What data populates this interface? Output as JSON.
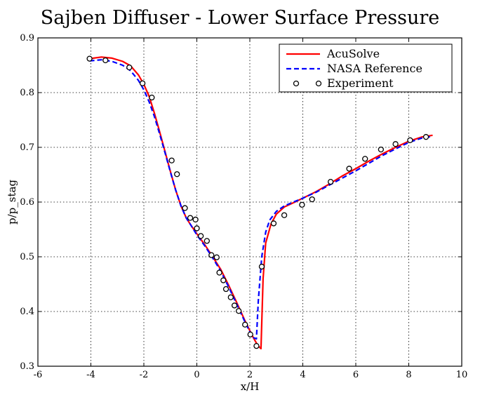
{
  "chart_data": {
    "type": "line",
    "title": "Sajben Diffuser - Lower Surface Pressure",
    "xlabel": "x/H",
    "ylabel": "p/p_stag",
    "xlim": [
      -6,
      10
    ],
    "ylim": [
      0.3,
      0.9
    ],
    "xticks": [
      "-6",
      "-4",
      "-2",
      "0",
      "2",
      "4",
      "6",
      "8",
      "10"
    ],
    "yticks": [
      "0.3",
      "0.4",
      "0.5",
      "0.6",
      "0.7",
      "0.8",
      "0.9"
    ],
    "grid": true,
    "legend_position": "top-right",
    "series": [
      {
        "name": "AcuSolve",
        "style": "solid",
        "color": "#ff0000",
        "points": [
          [
            -4.05,
            0.862
          ],
          [
            -3.6,
            0.865
          ],
          [
            -3.2,
            0.863
          ],
          [
            -2.8,
            0.857
          ],
          [
            -2.5,
            0.849
          ],
          [
            -2.2,
            0.832
          ],
          [
            -2.0,
            0.815
          ],
          [
            -1.8,
            0.793
          ],
          [
            -1.6,
            0.762
          ],
          [
            -1.4,
            0.728
          ],
          [
            -1.2,
            0.692
          ],
          [
            -1.0,
            0.656
          ],
          [
            -0.8,
            0.622
          ],
          [
            -0.6,
            0.593
          ],
          [
            -0.4,
            0.571
          ],
          [
            -0.2,
            0.556
          ],
          [
            0.0,
            0.542
          ],
          [
            0.3,
            0.522
          ],
          [
            0.6,
            0.5
          ],
          [
            0.9,
            0.477
          ],
          [
            1.2,
            0.448
          ],
          [
            1.5,
            0.417
          ],
          [
            1.8,
            0.385
          ],
          [
            2.1,
            0.355
          ],
          [
            2.3,
            0.338
          ],
          [
            2.42,
            0.332
          ],
          [
            2.5,
            0.46
          ],
          [
            2.6,
            0.525
          ],
          [
            2.8,
            0.56
          ],
          [
            3.0,
            0.578
          ],
          [
            3.3,
            0.591
          ],
          [
            3.7,
            0.6
          ],
          [
            4.0,
            0.607
          ],
          [
            4.5,
            0.619
          ],
          [
            5.0,
            0.633
          ],
          [
            5.5,
            0.648
          ],
          [
            6.0,
            0.661
          ],
          [
            6.5,
            0.675
          ],
          [
            7.0,
            0.688
          ],
          [
            7.5,
            0.7
          ],
          [
            8.0,
            0.711
          ],
          [
            8.5,
            0.719
          ],
          [
            8.9,
            0.722
          ]
        ]
      },
      {
        "name": "NASA Reference",
        "style": "dashed",
        "color": "#0000ff",
        "points": [
          [
            -4.05,
            0.858
          ],
          [
            -3.6,
            0.86
          ],
          [
            -3.2,
            0.857
          ],
          [
            -2.8,
            0.85
          ],
          [
            -2.5,
            0.84
          ],
          [
            -2.2,
            0.822
          ],
          [
            -2.0,
            0.805
          ],
          [
            -1.8,
            0.783
          ],
          [
            -1.6,
            0.756
          ],
          [
            -1.4,
            0.724
          ],
          [
            -1.2,
            0.69
          ],
          [
            -1.0,
            0.655
          ],
          [
            -0.8,
            0.622
          ],
          [
            -0.6,
            0.593
          ],
          [
            -0.4,
            0.571
          ],
          [
            -0.2,
            0.556
          ],
          [
            0.0,
            0.54
          ],
          [
            0.3,
            0.52
          ],
          [
            0.6,
            0.498
          ],
          [
            0.9,
            0.474
          ],
          [
            1.2,
            0.445
          ],
          [
            1.5,
            0.414
          ],
          [
            1.8,
            0.383
          ],
          [
            2.1,
            0.353
          ],
          [
            2.25,
            0.35
          ],
          [
            2.32,
            0.42
          ],
          [
            2.45,
            0.5
          ],
          [
            2.6,
            0.545
          ],
          [
            2.75,
            0.567
          ],
          [
            3.0,
            0.583
          ],
          [
            3.3,
            0.593
          ],
          [
            3.7,
            0.601
          ],
          [
            4.0,
            0.607
          ],
          [
            4.5,
            0.618
          ],
          [
            5.0,
            0.631
          ],
          [
            5.5,
            0.644
          ],
          [
            6.0,
            0.657
          ],
          [
            6.5,
            0.671
          ],
          [
            7.0,
            0.685
          ],
          [
            7.5,
            0.697
          ],
          [
            8.0,
            0.709
          ],
          [
            8.5,
            0.717
          ],
          [
            8.9,
            0.72
          ]
        ]
      },
      {
        "name": "Experiment",
        "style": "markers",
        "marker": "open-circle",
        "points": [
          [
            -4.05,
            0.862
          ],
          [
            -3.45,
            0.859
          ],
          [
            -2.55,
            0.846
          ],
          [
            -2.05,
            0.817
          ],
          [
            -1.7,
            0.791
          ],
          [
            -0.95,
            0.676
          ],
          [
            -0.75,
            0.651
          ],
          [
            -0.45,
            0.589
          ],
          [
            -0.25,
            0.571
          ],
          [
            -0.05,
            0.568
          ],
          [
            0.0,
            0.552
          ],
          [
            0.15,
            0.538
          ],
          [
            0.38,
            0.529
          ],
          [
            0.55,
            0.503
          ],
          [
            0.75,
            0.499
          ],
          [
            0.85,
            0.471
          ],
          [
            1.0,
            0.457
          ],
          [
            1.1,
            0.441
          ],
          [
            1.28,
            0.426
          ],
          [
            1.42,
            0.411
          ],
          [
            1.58,
            0.401
          ],
          [
            1.82,
            0.376
          ],
          [
            2.02,
            0.358
          ],
          [
            2.25,
            0.337
          ],
          [
            2.45,
            0.482
          ],
          [
            2.9,
            0.561
          ],
          [
            3.3,
            0.576
          ],
          [
            3.97,
            0.595
          ],
          [
            4.35,
            0.605
          ],
          [
            5.05,
            0.637
          ],
          [
            5.75,
            0.661
          ],
          [
            6.35,
            0.679
          ],
          [
            6.95,
            0.696
          ],
          [
            7.5,
            0.706
          ],
          [
            8.05,
            0.713
          ],
          [
            8.65,
            0.719
          ]
        ]
      }
    ]
  }
}
